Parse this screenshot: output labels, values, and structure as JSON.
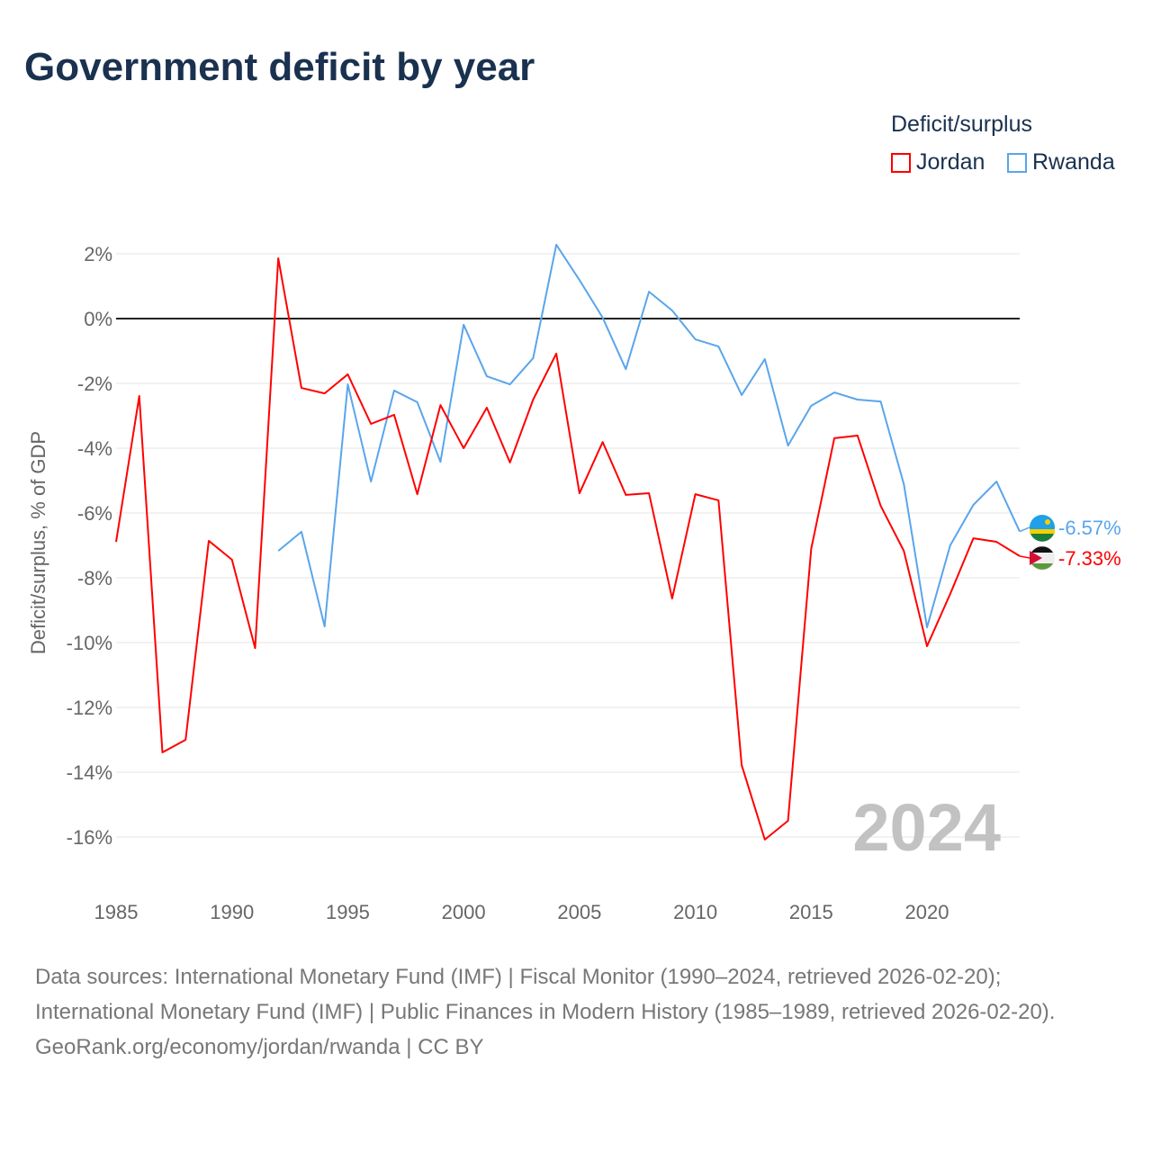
{
  "title": "Government deficit by year",
  "legend": {
    "title": "Deficit/surplus",
    "items": [
      {
        "label": "Jordan",
        "color": "#ff0000"
      },
      {
        "label": "Rwanda",
        "color": "#5aa5ec"
      }
    ]
  },
  "sources": {
    "line1": "Data sources: International Monetary Fund (IMF) | Fiscal Monitor (1990–2024, retrieved 2026-02-20); International Monetary Fund (IMF) | Public Finances in Modern History (1985–1989, retrieved 2026-02-20).",
    "line2": "GeoRank.org/economy/jordan/rwanda | CC BY"
  },
  "chart_data": {
    "type": "line",
    "title": "Government deficit by year",
    "xlabel": "",
    "ylabel": "Deficit/surplus, % of GDP",
    "xlim": [
      1985,
      2024
    ],
    "ylim": [
      -16,
      2
    ],
    "x_ticks": [
      1985,
      1990,
      1995,
      2000,
      2005,
      2010,
      2015,
      2020
    ],
    "x_tick_labels": [
      "1985",
      "1990",
      "1995",
      "2000",
      "2005",
      "2010",
      "2015",
      "2020"
    ],
    "y_ticks": [
      2,
      0,
      -2,
      -4,
      -6,
      -8,
      -10,
      -12,
      -14,
      -16
    ],
    "y_tick_labels": [
      "2%",
      "0%",
      "-2%",
      "-4%",
      "-6%",
      "-8%",
      "-10%",
      "-12%",
      "-14%",
      "-16%"
    ],
    "grid": true,
    "legend_position": "top-right",
    "year_label": "2024",
    "series": [
      {
        "name": "Jordan",
        "color": "#ff0000",
        "end_label": "-7.33%",
        "x": [
          1985,
          1986,
          1987,
          1988,
          1989,
          1990,
          1991,
          1992,
          1993,
          1994,
          1995,
          1996,
          1997,
          1998,
          1999,
          2000,
          2001,
          2002,
          2003,
          2004,
          2005,
          2006,
          2007,
          2008,
          2009,
          2010,
          2011,
          2012,
          2013,
          2014,
          2015,
          2016,
          2017,
          2018,
          2019,
          2020,
          2021,
          2022,
          2023,
          2024
        ],
        "values": [
          -6.89,
          -2.39,
          -13.39,
          -13.0,
          -6.86,
          -7.44,
          -10.17,
          1.86,
          -2.14,
          -2.31,
          -1.72,
          -3.25,
          -2.97,
          -5.42,
          -2.67,
          -4.0,
          -2.75,
          -4.44,
          -2.5,
          -1.08,
          -5.39,
          -3.81,
          -5.44,
          -5.39,
          -8.64,
          -5.42,
          -5.61,
          -13.78,
          -16.08,
          -15.5,
          -7.11,
          -3.69,
          -3.61,
          -5.78,
          -7.17,
          -10.11,
          -8.5,
          -6.78,
          -6.89,
          -7.33
        ]
      },
      {
        "name": "Rwanda",
        "color": "#5aa5ec",
        "end_label": "-6.57%",
        "x": [
          1992,
          1993,
          1994,
          1995,
          1996,
          1997,
          1998,
          1999,
          2000,
          2001,
          2002,
          2003,
          2004,
          2005,
          2006,
          2007,
          2008,
          2009,
          2010,
          2011,
          2012,
          2013,
          2014,
          2015,
          2016,
          2017,
          2018,
          2019,
          2020,
          2021,
          2022,
          2023,
          2024
        ],
        "values": [
          -7.17,
          -6.58,
          -9.5,
          -2.03,
          -5.03,
          -2.22,
          -2.58,
          -4.42,
          -0.19,
          -1.78,
          -2.03,
          -1.22,
          2.28,
          1.19,
          0.03,
          -1.56,
          0.83,
          0.25,
          -0.64,
          -0.86,
          -2.36,
          -1.25,
          -3.92,
          -2.69,
          -2.28,
          -2.5,
          -2.56,
          -5.11,
          -9.53,
          -7.0,
          -5.75,
          -5.03,
          -6.57
        ]
      }
    ]
  }
}
